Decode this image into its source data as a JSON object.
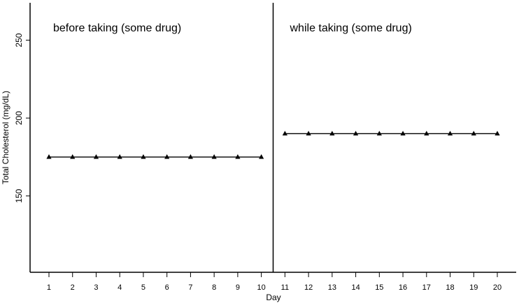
{
  "chart_data": {
    "type": "line",
    "title": "",
    "xlabel": "Day",
    "ylabel": "Total Cholesterol (mg/dL)",
    "xlim": [
      0.2,
      20.8
    ],
    "ylim": [
      101,
      274
    ],
    "x_ticks": [
      1,
      2,
      3,
      4,
      5,
      6,
      7,
      8,
      9,
      10,
      11,
      12,
      13,
      14,
      15,
      16,
      17,
      18,
      19,
      20
    ],
    "y_ticks": [
      150,
      200,
      250
    ],
    "grid": false,
    "legend": "none",
    "marker": "triangle",
    "line_color": "#000000",
    "phase_change_after_day": 10,
    "phases": [
      {
        "label": "before taking (some drug)",
        "x": [
          1,
          2,
          3,
          4,
          5,
          6,
          7,
          8,
          9,
          10
        ],
        "values": [
          175,
          175,
          175,
          175,
          175,
          175,
          175,
          175,
          175,
          175
        ]
      },
      {
        "label": "while taking (some drug)",
        "x": [
          11,
          12,
          13,
          14,
          15,
          16,
          17,
          18,
          19,
          20
        ],
        "values": [
          190,
          190,
          190,
          190,
          190,
          190,
          190,
          190,
          190,
          190
        ]
      }
    ]
  }
}
